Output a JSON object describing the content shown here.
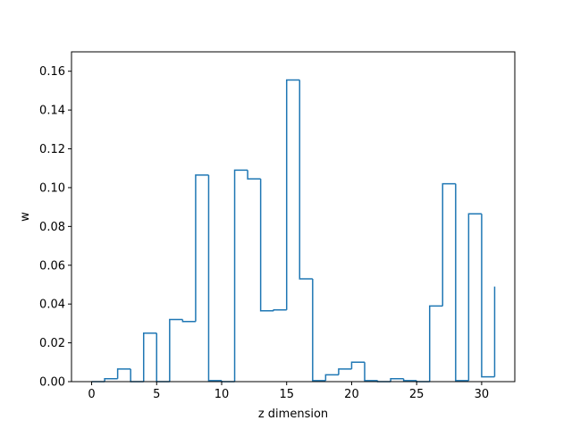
{
  "chart_data": {
    "type": "line",
    "style": "step-histogram",
    "xlabel": "z dimension",
    "ylabel": "w",
    "xlim": [
      -1.55,
      32.55
    ],
    "ylim": [
      0,
      0.17
    ],
    "xticks": [
      0,
      5,
      10,
      15,
      20,
      25,
      30
    ],
    "xtick_labels": [
      "0",
      "5",
      "10",
      "15",
      "20",
      "25",
      "30"
    ],
    "yticks": [
      0.0,
      0.02,
      0.04,
      0.06,
      0.08,
      0.1,
      0.12,
      0.14,
      0.16
    ],
    "ytick_labels": [
      "0.00",
      "0.02",
      "0.04",
      "0.06",
      "0.08",
      "0.10",
      "0.12",
      "0.14",
      "0.16"
    ],
    "grid": false,
    "color": "#1f77b4",
    "x": [
      0,
      1,
      2,
      3,
      4,
      5,
      6,
      7,
      8,
      9,
      10,
      11,
      12,
      13,
      14,
      15,
      16,
      17,
      18,
      19,
      20,
      21,
      22,
      23,
      24,
      25,
      26,
      27,
      28,
      29,
      30,
      31
    ],
    "values": [
      0.0,
      0.0015,
      0.0065,
      0.0,
      0.025,
      0.0,
      0.032,
      0.031,
      0.1065,
      0.0005,
      0.0,
      0.109,
      0.1045,
      0.0365,
      0.037,
      0.1555,
      0.053,
      0.0005,
      0.0035,
      0.0065,
      0.01,
      0.0005,
      0.0,
      0.0015,
      0.0005,
      0.0,
      0.039,
      0.102,
      0.0005,
      0.0865,
      0.0025,
      0.049
    ]
  }
}
